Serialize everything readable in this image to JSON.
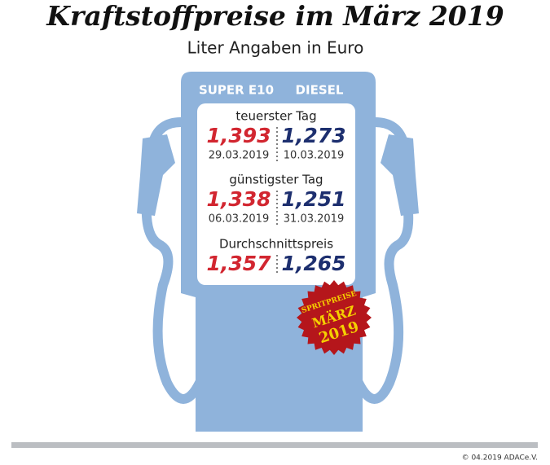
{
  "title": "Kraftstoffpreise im März 2019",
  "subtitle": "Liter Angaben in Euro",
  "columns": [
    "SUPER E10",
    "DIESEL"
  ],
  "sections": [
    {
      "label": "teuerster Tag",
      "super_e10": {
        "price": "1,393",
        "date": "29.03.2019"
      },
      "diesel": {
        "price": "1,273",
        "date": "10.03.2019"
      }
    },
    {
      "label": "günstigster Tag",
      "super_e10": {
        "price": "1,338",
        "date": "06.03.2019"
      },
      "diesel": {
        "price": "1,251",
        "date": "31.03.2019"
      }
    },
    {
      "label": "Durchschnittspreis",
      "super_e10": {
        "price": "1,357"
      },
      "diesel": {
        "price": "1,265"
      }
    }
  ],
  "badge": {
    "line1": "SPRITPREISE",
    "line2": "MÄRZ",
    "line3": "2019"
  },
  "footer": "© 04.2019 ADACe.V."
}
